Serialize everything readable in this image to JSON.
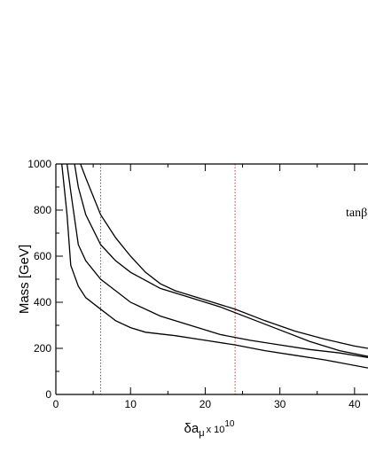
{
  "chart_data": {
    "type": "line",
    "xlabel": "δa",
    "xlabel_sub": "μ",
    "xlabel_times": "x 10",
    "xlabel_sup": "10",
    "ylabel": "Mass  [GeV]",
    "annotation": "tanβ",
    "xlim": [
      0,
      41.8
    ],
    "ylim": [
      0,
      1000
    ],
    "xticks": [
      0,
      10,
      20,
      30,
      40
    ],
    "xminorticks": [
      5,
      15,
      25,
      35
    ],
    "yticks": [
      0,
      200,
      400,
      600,
      800,
      1000
    ],
    "yminorticks": [
      100,
      300,
      500,
      700,
      900
    ],
    "vlines": [
      6,
      24
    ],
    "vline_color": "#e03030",
    "series": [
      {
        "color": "#000000",
        "x": [
          3.3,
          4,
          6,
          8,
          10,
          12,
          14,
          16,
          20,
          24,
          28,
          32,
          36,
          40,
          41.8
        ],
        "values": [
          1000,
          940,
          780,
          680,
          600,
          530,
          480,
          450,
          410,
          370,
          320,
          275,
          240,
          210,
          200
        ]
      },
      {
        "color": "#000000",
        "x": [
          2.5,
          3,
          4,
          6,
          8,
          10,
          14,
          18,
          22,
          26,
          30,
          34,
          38,
          41.8
        ],
        "values": [
          1000,
          900,
          780,
          650,
          580,
          530,
          460,
          420,
          380,
          330,
          280,
          230,
          190,
          165
        ]
      },
      {
        "color": "#000000",
        "x": [
          1.5,
          2,
          3,
          4,
          6,
          8,
          10,
          14,
          18,
          22,
          26,
          30,
          34,
          38,
          41.8
        ],
        "values": [
          1000,
          880,
          650,
          580,
          500,
          450,
          400,
          340,
          300,
          260,
          235,
          215,
          195,
          180,
          160
        ]
      },
      {
        "color": "#000000",
        "x": [
          0.8,
          1.5,
          2,
          3,
          4,
          6,
          8,
          10,
          12,
          16,
          20,
          24,
          28,
          32,
          36,
          41.8
        ],
        "values": [
          1000,
          780,
          560,
          470,
          420,
          370,
          320,
          290,
          270,
          255,
          235,
          215,
          190,
          170,
          150,
          115
        ]
      }
    ]
  }
}
